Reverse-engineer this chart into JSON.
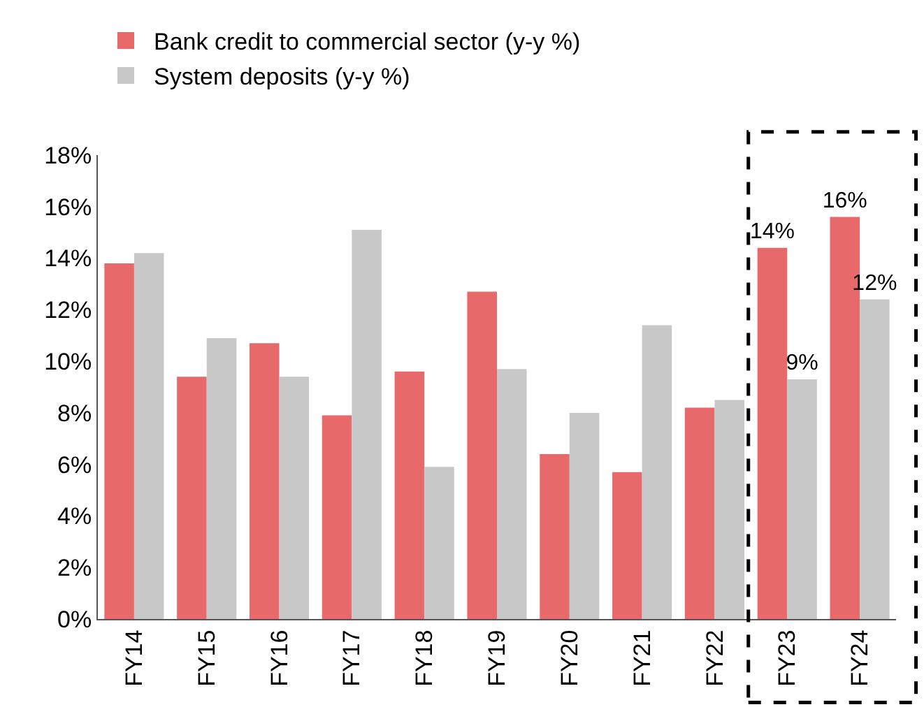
{
  "chart_data": {
    "type": "bar",
    "categories": [
      "FY14",
      "FY15",
      "FY16",
      "FY17",
      "FY18",
      "FY19",
      "FY20",
      "FY21",
      "FY22",
      "FY23",
      "FY24"
    ],
    "series": [
      {
        "name": "Bank credit to commercial sector (y-y %)",
        "color": "#e8696a",
        "values": [
          13.8,
          9.4,
          10.7,
          7.9,
          9.6,
          12.7,
          6.4,
          5.7,
          8.2,
          14.4,
          15.6
        ],
        "value_labels": [
          null,
          null,
          null,
          null,
          null,
          null,
          null,
          null,
          null,
          "14%",
          "16%"
        ]
      },
      {
        "name": "System deposits (y-y %)",
        "color": "#c8c8c8",
        "values": [
          14.2,
          10.9,
          9.4,
          15.1,
          5.9,
          9.7,
          8.0,
          11.4,
          8.5,
          9.3,
          12.4
        ],
        "value_labels": [
          null,
          null,
          null,
          null,
          null,
          null,
          null,
          null,
          null,
          "9%",
          "12%"
        ]
      }
    ],
    "ylim": [
      0,
      18
    ],
    "yticks": [
      {
        "value": 0,
        "label": "0%"
      },
      {
        "value": 2,
        "label": "2%"
      },
      {
        "value": 4,
        "label": "4%"
      },
      {
        "value": 6,
        "label": "6%"
      },
      {
        "value": 8,
        "label": "8%"
      },
      {
        "value": 10,
        "label": "10%"
      },
      {
        "value": 12,
        "label": "12%"
      },
      {
        "value": 14,
        "label": "14%"
      },
      {
        "value": 16,
        "label": "16%"
      },
      {
        "value": 18,
        "label": "18%"
      }
    ],
    "legend": "top left"
  }
}
